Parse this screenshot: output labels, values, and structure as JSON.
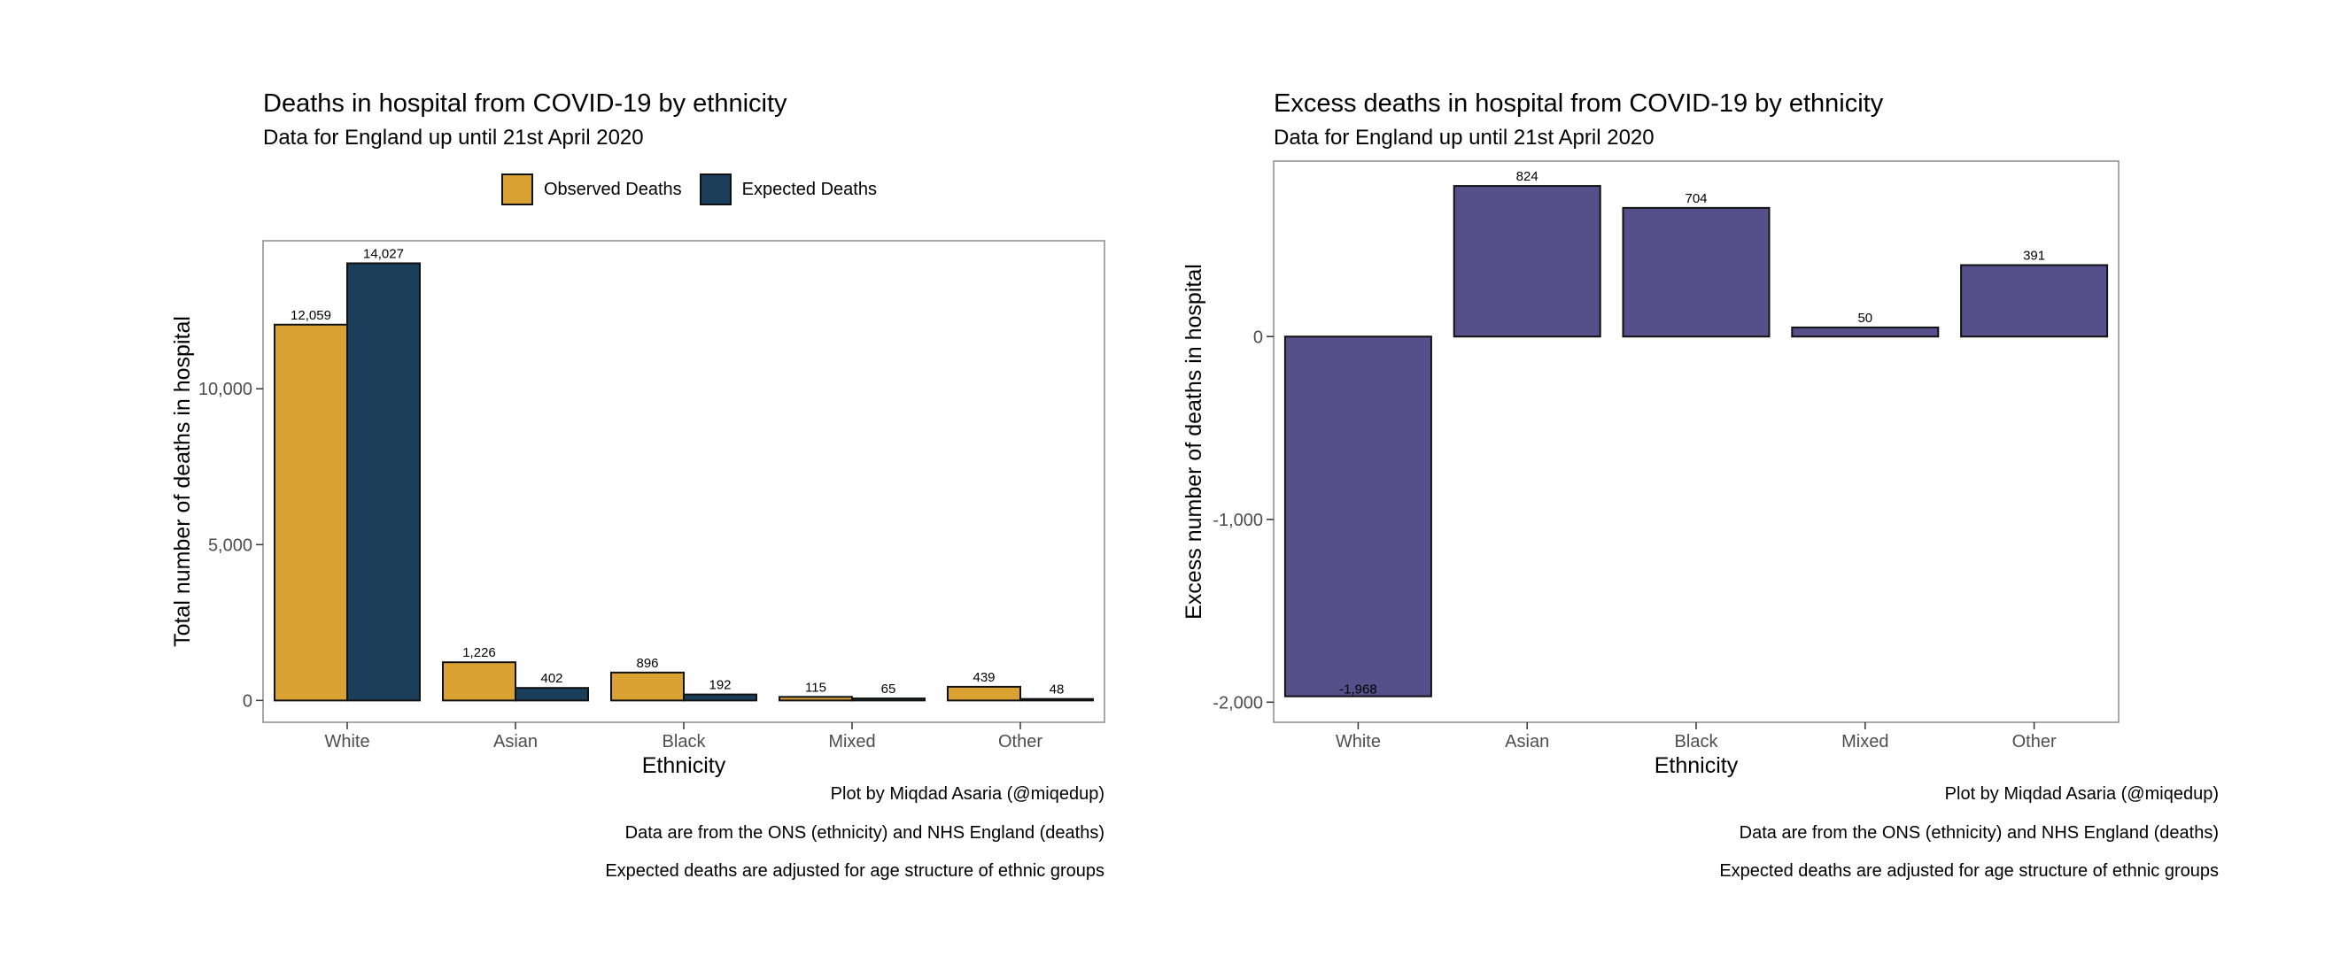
{
  "colors": {
    "observed": "#DAA133",
    "expected": "#1B3F5A",
    "excess": "#574F8A",
    "outline": "#111111",
    "panel_border": "#8c8c8c",
    "axis_text": "#4d4d4d"
  },
  "chart_data": [
    {
      "type": "bar",
      "title": "Deaths in hospital from COVID-19 by ethnicity",
      "subtitle": "Data for England up until 21st April 2020",
      "xlabel": "Ethnicity",
      "ylabel": "Total number of deaths in hospital",
      "categories": [
        "White",
        "Asian",
        "Black",
        "Mixed",
        "Other"
      ],
      "series": [
        {
          "name": "Observed Deaths",
          "values": [
            12059,
            1226,
            896,
            115,
            439
          ],
          "labels": [
            "12,059",
            "1,226",
            "896",
            "115",
            "439"
          ]
        },
        {
          "name": "Expected Deaths",
          "values": [
            14027,
            402,
            192,
            65,
            48
          ],
          "labels": [
            "14,027",
            "402",
            "192",
            "65",
            "48"
          ]
        }
      ],
      "yticks": [
        0,
        5000,
        10000
      ],
      "ytick_labels": [
        "0",
        "5,000",
        "10,000"
      ],
      "ylim": [
        -700,
        14750
      ],
      "legend_position": "top",
      "grid": false,
      "caption": [
        "Plot by Miqdad Asaria (@miqedup)",
        "Data are from the ONS (ethnicity) and NHS England (deaths)",
        "Expected deaths are adjusted for age structure of ethnic groups"
      ]
    },
    {
      "type": "bar",
      "title": "Excess deaths in hospital from COVID-19 by ethnicity",
      "subtitle": "Data for England up until 21st April 2020",
      "xlabel": "Ethnicity",
      "ylabel": "Excess number of deaths in hospital",
      "categories": [
        "White",
        "Asian",
        "Black",
        "Mixed",
        "Other"
      ],
      "values": [
        -1968,
        824,
        704,
        50,
        391
      ],
      "labels": [
        "-1,968",
        "824",
        "704",
        "50",
        "391"
      ],
      "yticks": [
        -2000,
        -1000,
        0
      ],
      "ytick_labels": [
        "-2,000",
        "-1,000",
        "0"
      ],
      "ylim": [
        -2110,
        960
      ],
      "grid": false,
      "caption": [
        "Plot by Miqdad Asaria (@miqedup)",
        "Data are from the ONS (ethnicity) and NHS England (deaths)",
        "Expected deaths are adjusted for age structure of ethnic groups"
      ]
    }
  ]
}
